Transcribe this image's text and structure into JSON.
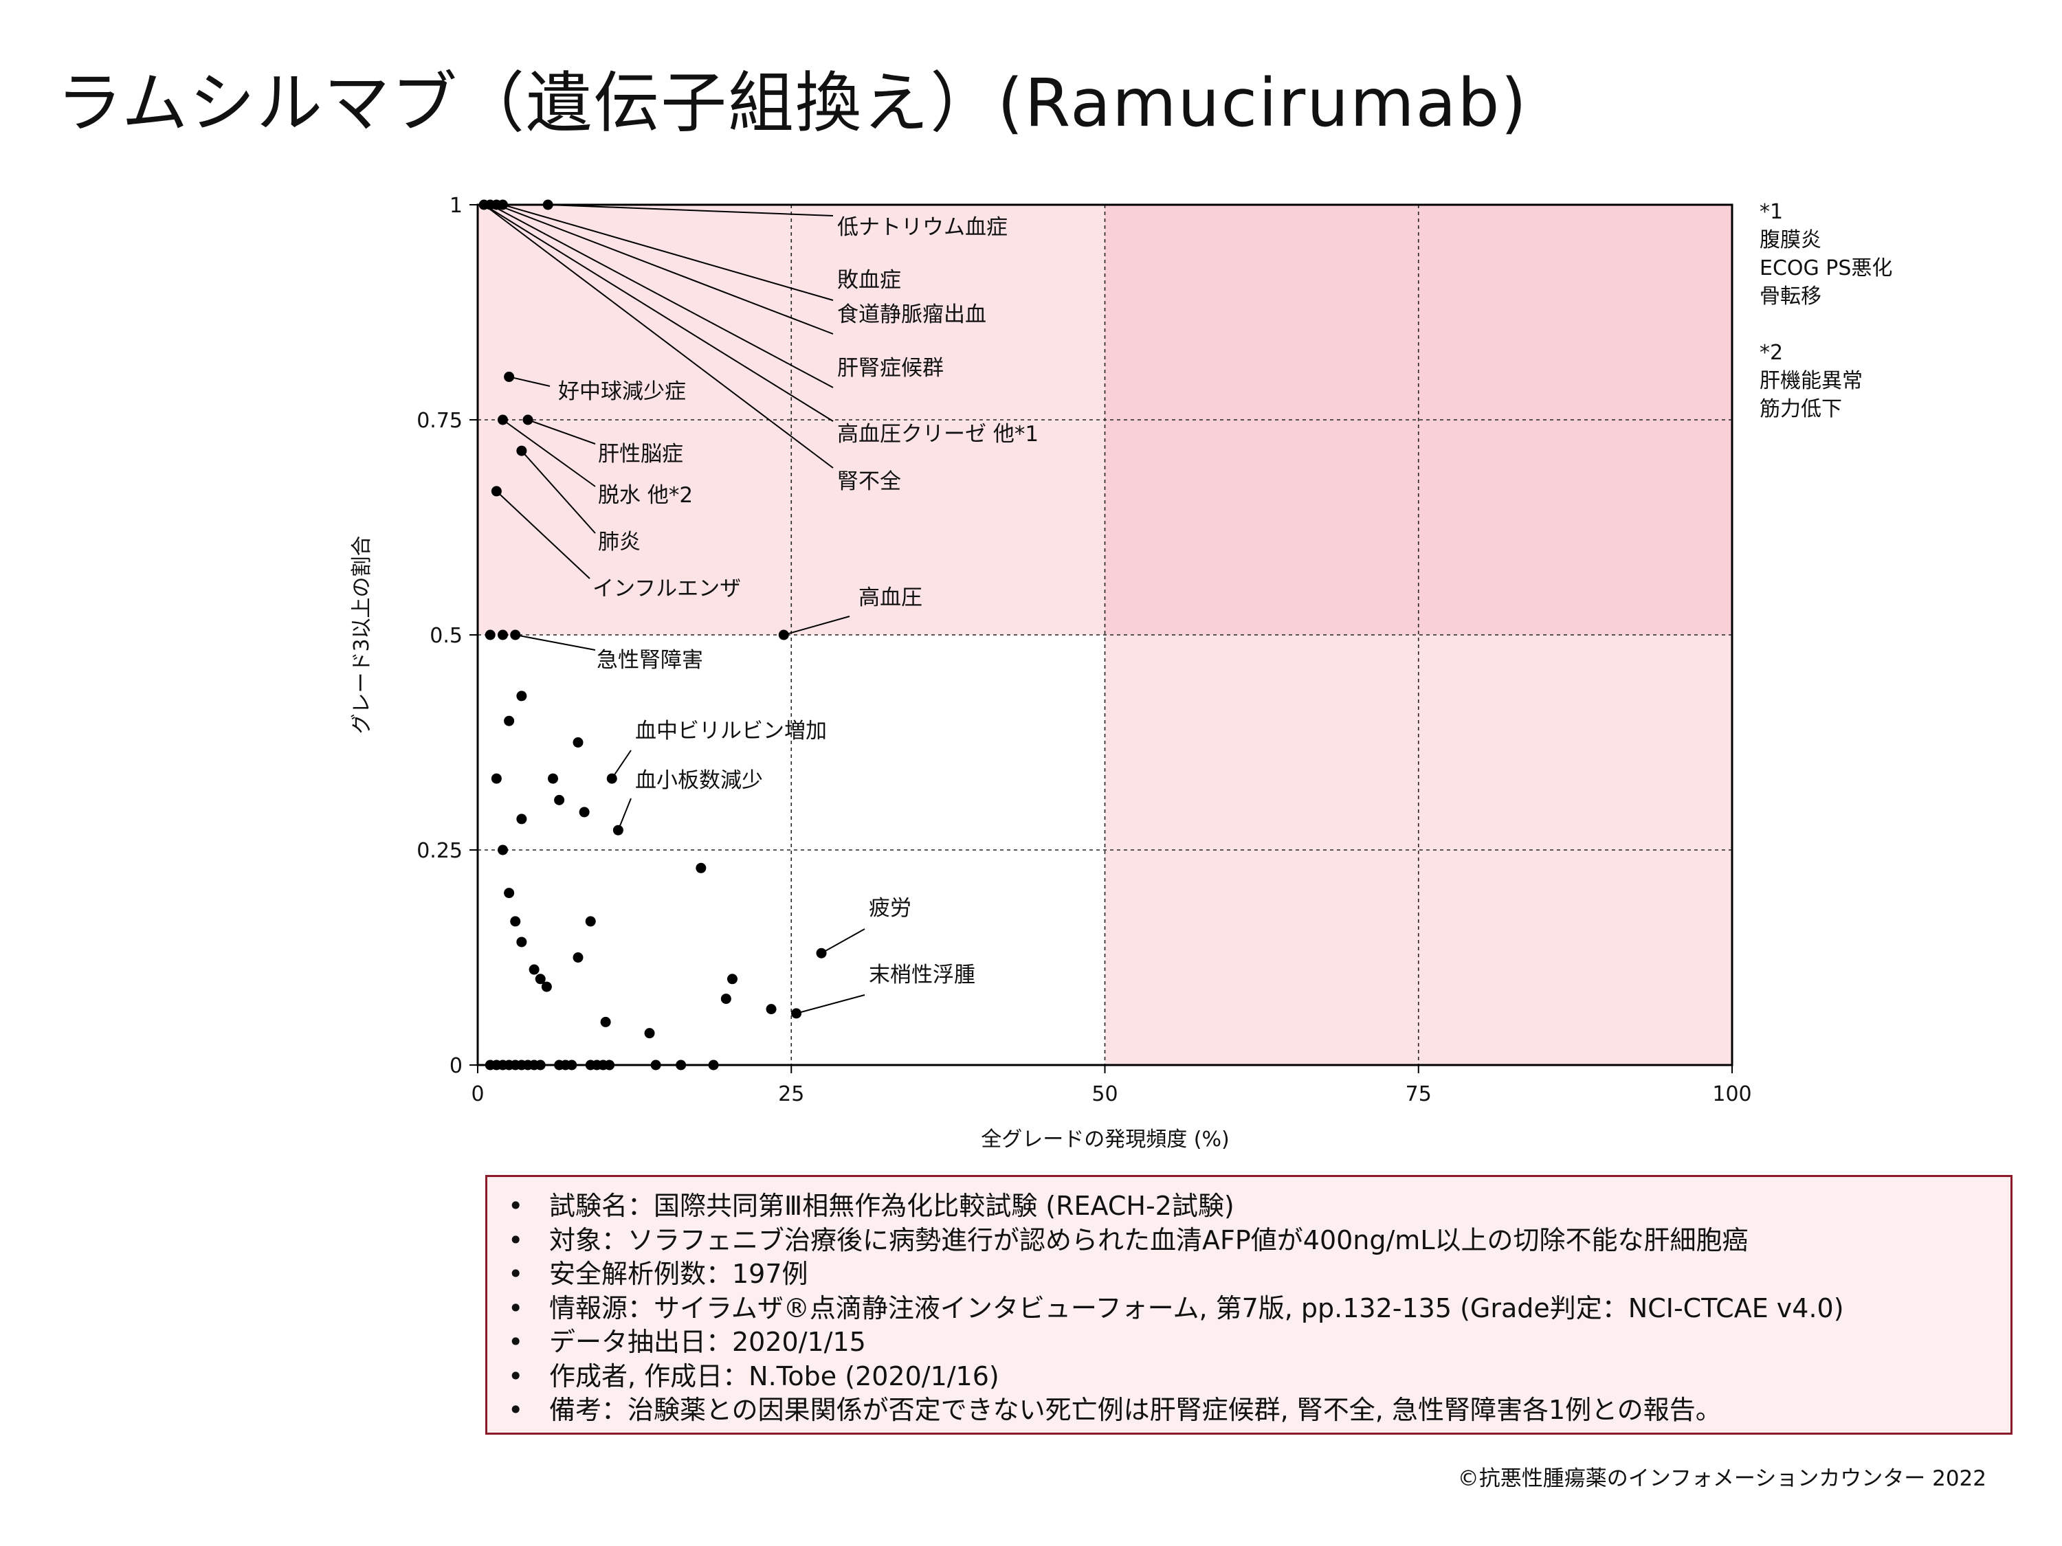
{
  "title": "ラムシルマブ（遺伝子組換え）(Ramucirumab)",
  "colors": {
    "zone_light": "#fbe3e6",
    "zone_dark": "#f9d0d7",
    "info_box_border": "#8b1a2b",
    "info_box_fill": "#fdeef0",
    "points": "#000000"
  },
  "chart_data": {
    "type": "scatter",
    "title": "",
    "xlabel": "全グレードの発現頻度 (%)",
    "ylabel": "グレード3以上の割合",
    "xlim": [
      0,
      100
    ],
    "ylim": [
      0,
      1
    ],
    "x_ticks": [
      0,
      25,
      50,
      75,
      100
    ],
    "x_tick_labels": [
      "0",
      "25",
      "50",
      "75",
      "100"
    ],
    "y_ticks": [
      0,
      0.25,
      0.5,
      0.75,
      1
    ],
    "y_tick_labels": [
      "0",
      "0.25",
      "0.5",
      "0.75",
      "1"
    ],
    "grid": "dashed lines at x = 25, 50, 75 and y = 0.25, 0.5, 0.75",
    "shaded_regions": [
      {
        "x_range": [
          0,
          100
        ],
        "y_range": [
          0,
          1
        ],
        "shade": "light pink"
      },
      {
        "x_range": [
          50,
          100
        ],
        "y_range": [
          0.5,
          1
        ],
        "shade": "darker pink"
      }
    ],
    "points": [
      {
        "x": 0.5,
        "y": 1
      },
      {
        "x": 1.0,
        "y": 1
      },
      {
        "x": 1.5,
        "y": 1
      },
      {
        "x": 2.0,
        "y": 1
      },
      {
        "x": 5.6,
        "y": 1
      },
      {
        "x": 2.5,
        "y": 0.8
      },
      {
        "x": 2.0,
        "y": 0.75
      },
      {
        "x": 4.0,
        "y": 0.75
      },
      {
        "x": 3.5,
        "y": 0.714
      },
      {
        "x": 1.5,
        "y": 0.667
      },
      {
        "x": 1.0,
        "y": 0.5
      },
      {
        "x": 2.0,
        "y": 0.5
      },
      {
        "x": 3.0,
        "y": 0.5
      },
      {
        "x": 24.4,
        "y": 0.5
      },
      {
        "x": 3.5,
        "y": 0.429
      },
      {
        "x": 2.5,
        "y": 0.4
      },
      {
        "x": 8.0,
        "y": 0.375
      },
      {
        "x": 1.5,
        "y": 0.333
      },
      {
        "x": 6.0,
        "y": 0.333
      },
      {
        "x": 10.7,
        "y": 0.333
      },
      {
        "x": 6.5,
        "y": 0.308
      },
      {
        "x": 8.5,
        "y": 0.294
      },
      {
        "x": 3.5,
        "y": 0.286
      },
      {
        "x": 11.2,
        "y": 0.273
      },
      {
        "x": 2.0,
        "y": 0.25
      },
      {
        "x": 17.8,
        "y": 0.229
      },
      {
        "x": 2.5,
        "y": 0.2
      },
      {
        "x": 3.0,
        "y": 0.167
      },
      {
        "x": 9.0,
        "y": 0.167
      },
      {
        "x": 3.5,
        "y": 0.143
      },
      {
        "x": 27.4,
        "y": 0.13
      },
      {
        "x": 8.0,
        "y": 0.125
      },
      {
        "x": 4.5,
        "y": 0.111
      },
      {
        "x": 5.0,
        "y": 0.1
      },
      {
        "x": 20.3,
        "y": 0.1
      },
      {
        "x": 5.5,
        "y": 0.091
      },
      {
        "x": 19.8,
        "y": 0.077
      },
      {
        "x": 23.4,
        "y": 0.065
      },
      {
        "x": 25.4,
        "y": 0.06
      },
      {
        "x": 10.2,
        "y": 0.05
      },
      {
        "x": 13.7,
        "y": 0.037
      },
      {
        "x": 1.0,
        "y": 0
      },
      {
        "x": 1.5,
        "y": 0
      },
      {
        "x": 2.0,
        "y": 0
      },
      {
        "x": 2.5,
        "y": 0
      },
      {
        "x": 3.0,
        "y": 0
      },
      {
        "x": 3.5,
        "y": 0
      },
      {
        "x": 4.0,
        "y": 0
      },
      {
        "x": 4.5,
        "y": 0
      },
      {
        "x": 5.0,
        "y": 0
      },
      {
        "x": 6.5,
        "y": 0
      },
      {
        "x": 7.0,
        "y": 0
      },
      {
        "x": 7.5,
        "y": 0
      },
      {
        "x": 9.0,
        "y": 0
      },
      {
        "x": 9.5,
        "y": 0
      },
      {
        "x": 10.0,
        "y": 0
      },
      {
        "x": 10.5,
        "y": 0
      },
      {
        "x": 14.2,
        "y": 0
      },
      {
        "x": 16.2,
        "y": 0
      },
      {
        "x": 18.8,
        "y": 0
      }
    ],
    "annotations": [
      {
        "text": "低ナトリウム血症",
        "point": [
          5.6,
          1
        ]
      },
      {
        "text": "敗血症",
        "point": [
          2.0,
          1
        ]
      },
      {
        "text": "食道静脈瘤出血",
        "point": [
          1.5,
          1
        ]
      },
      {
        "text": "肝腎症候群",
        "point": [
          1.0,
          1
        ]
      },
      {
        "text": "高血圧クリーゼ 他*1",
        "point": [
          0.5,
          1
        ]
      },
      {
        "text": "腎不全",
        "point": [
          0.5,
          1
        ]
      },
      {
        "text": "好中球減少症",
        "point": [
          2.5,
          0.8
        ]
      },
      {
        "text": "肝性脳症",
        "point": [
          4.0,
          0.75
        ]
      },
      {
        "text": "脱水 他*2",
        "point": [
          2.0,
          0.75
        ]
      },
      {
        "text": "肺炎",
        "point": [
          3.5,
          0.714
        ]
      },
      {
        "text": "インフルエンザ",
        "point": [
          1.5,
          0.667
        ]
      },
      {
        "text": "高血圧",
        "point": [
          24.4,
          0.5
        ]
      },
      {
        "text": "急性腎障害",
        "point": [
          3.0,
          0.5
        ]
      },
      {
        "text": "血中ビリルビン増加",
        "point": [
          10.7,
          0.333
        ]
      },
      {
        "text": "血小板数減少",
        "point": [
          11.2,
          0.273
        ]
      },
      {
        "text": "疲労",
        "point": [
          27.4,
          0.13
        ]
      },
      {
        "text": "末梢性浮腫",
        "point": [
          25.4,
          0.06
        ]
      }
    ]
  },
  "footnotes": [
    {
      "lines": [
        "*1",
        "腹膜炎",
        "ECOG PS悪化",
        "骨転移"
      ]
    },
    {
      "lines": [
        "*2",
        "肝機能異常",
        "筋力低下"
      ]
    }
  ],
  "info_box": {
    "bullet": "•",
    "items": [
      "試験名：国際共同第Ⅲ相無作為化比較試験 (REACH-2試験)",
      "対象：ソラフェニブ治療後に病勢進行が認められた血清AFP値が400ng/mL以上の切除不能な肝細胞癌",
      "安全解析例数：197例",
      "情報源：サイラムザ®点滴静注液インタビューフォーム, 第7版, pp.132-135 (Grade判定：NCI-CTCAE v4.0)",
      "データ抽出日：2020/1/15",
      "作成者, 作成日：N.Tobe (2020/1/16)",
      "備考：治験薬との因果関係が否定できない死亡例は肝腎症候群, 腎不全, 急性腎障害各1例との報告。"
    ]
  },
  "copyright": "©抗悪性腫瘍薬のインフォメーションカウンター 2022"
}
